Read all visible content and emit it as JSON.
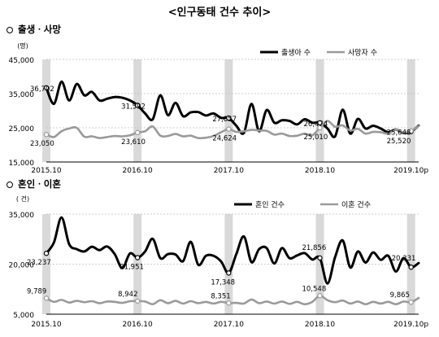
{
  "page_title": "<인구동태 건수 추이>",
  "sections": [
    {
      "title": "출생ㆍ사망"
    },
    {
      "title": "혼인ㆍ이혼"
    }
  ],
  "chart_data": [
    {
      "type": "line",
      "unit": "(명)",
      "x_ticks": [
        "2015.10",
        "2016.10",
        "2017.10",
        "2018.10",
        "2019.10p"
      ],
      "y_ticks": [
        "15,000",
        "25,000",
        "35,000",
        "45,000"
      ],
      "ylim": [
        15000,
        45000
      ],
      "grid": true,
      "legend_position": "top-right",
      "series": [
        {
          "name": "출생아 수",
          "color": "#000000",
          "values": [
            36702,
            32000,
            38500,
            33000,
            37800,
            34500,
            35500,
            33000,
            33500,
            34000,
            33800,
            33000,
            31592,
            29200,
            27500,
            34500,
            28700,
            32300,
            28400,
            29500,
            29600,
            28600,
            29200,
            27900,
            27857,
            25600,
            23500,
            32000,
            24000,
            30200,
            26500,
            27200,
            27000,
            26000,
            27500,
            26500,
            26474,
            24800,
            22500,
            30300,
            23300,
            27600,
            24800,
            25600,
            24800,
            23700,
            24500,
            23500,
            23900,
            25648
          ]
        },
        {
          "name": "사망자 수",
          "color": "#9a9a9a",
          "values": [
            23050,
            22300,
            24000,
            24800,
            25000,
            22400,
            22500,
            22000,
            22300,
            22600,
            22500,
            22800,
            23610,
            24000,
            25400,
            22700,
            22600,
            23200,
            22500,
            22700,
            22000,
            22100,
            22600,
            23700,
            24624,
            23800,
            24000,
            24400,
            24200,
            24100,
            23000,
            23300,
            22600,
            22700,
            23300,
            22800,
            25010,
            27000,
            25300,
            25700,
            24200,
            24700,
            23300,
            23800,
            23700,
            23300,
            24500,
            23600,
            24100,
            25520
          ]
        }
      ],
      "annotations": [
        {
          "x": 0,
          "label": "36,702"
        },
        {
          "x": 0,
          "label": "23,050"
        },
        {
          "x": 12,
          "label": "31,592"
        },
        {
          "x": 12,
          "label": "23,610"
        },
        {
          "x": 24,
          "label": "27,857"
        },
        {
          "x": 24,
          "label": "24,624"
        },
        {
          "x": 36,
          "label": "26,474"
        },
        {
          "x": 36,
          "label": "25,010"
        },
        {
          "x": 48,
          "label": "25,648"
        },
        {
          "x": 48,
          "label": "25,520"
        }
      ]
    },
    {
      "type": "line",
      "unit": "( 건)",
      "x_ticks": [
        "2015.10",
        "2016.10",
        "2017.10",
        "2018.10",
        "2019.10p"
      ],
      "y_ticks": [
        "5,000",
        "20,000",
        "35,000"
      ],
      "ylim": [
        5000,
        35000
      ],
      "grid": true,
      "legend_position": "top-right",
      "series": [
        {
          "name": "혼인 건수",
          "color": "#000000",
          "values": [
            23237,
            26500,
            34000,
            26000,
            24500,
            23800,
            25200,
            24200,
            25300,
            23000,
            18800,
            23200,
            21951,
            23800,
            27600,
            21800,
            23000,
            22900,
            20900,
            26700,
            19800,
            22500,
            22500,
            20800,
            17348,
            23000,
            28300,
            20600,
            24500,
            24800,
            20200,
            24800,
            21800,
            22600,
            23300,
            21400,
            21856,
            14200,
            22100,
            27100,
            19000,
            23800,
            20500,
            23500,
            21300,
            22500,
            17800,
            21800,
            19100,
            20331
          ]
        },
        {
          "name": "이혼 건수",
          "color": "#9a9a9a",
          "values": [
            9789,
            8700,
            9300,
            8500,
            9000,
            8600,
            8900,
            8300,
            8800,
            8700,
            8400,
            8900,
            8942,
            8800,
            8000,
            9200,
            8300,
            9000,
            8200,
            8900,
            8300,
            8700,
            8200,
            8700,
            8351,
            8400,
            8200,
            9400,
            8300,
            8800,
            8200,
            8800,
            8100,
            8700,
            8000,
            8700,
            10548,
            9200,
            8600,
            9100,
            8200,
            8800,
            8000,
            8700,
            8200,
            8700,
            8000,
            8800,
            8600,
            9865
          ]
        }
      ],
      "annotations": [
        {
          "x": 0,
          "label": "23,237"
        },
        {
          "x": 0,
          "label": "9,789"
        },
        {
          "x": 12,
          "label": "21,951"
        },
        {
          "x": 12,
          "label": "8,942"
        },
        {
          "x": 24,
          "label": "17,348"
        },
        {
          "x": 24,
          "label": "8,351"
        },
        {
          "x": 36,
          "label": "21,856"
        },
        {
          "x": 36,
          "label": "10,548"
        },
        {
          "x": 48,
          "label": "20,331"
        },
        {
          "x": 48,
          "label": "9,865"
        }
      ]
    }
  ]
}
